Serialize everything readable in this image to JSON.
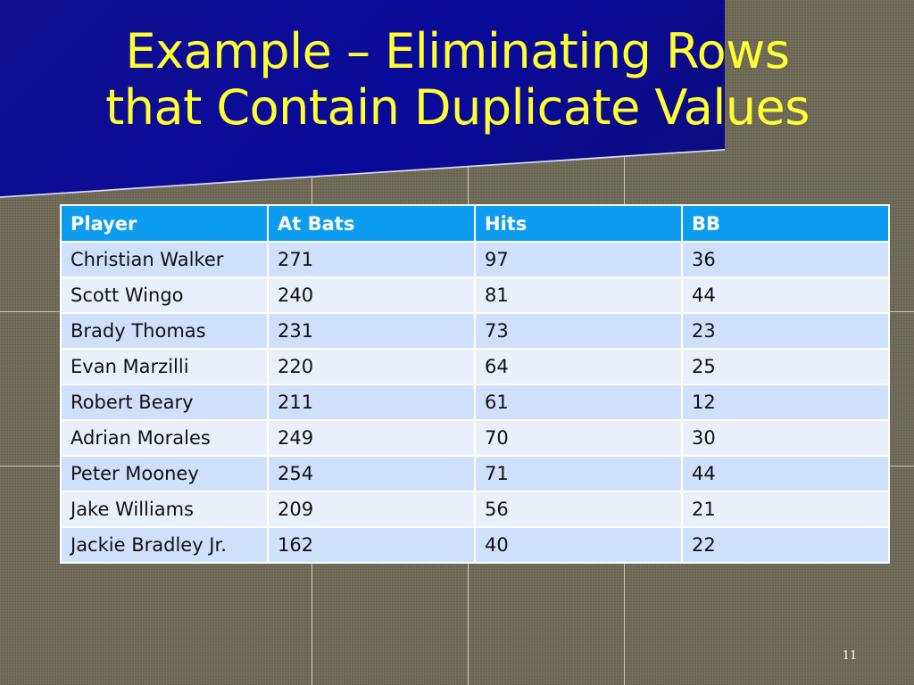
{
  "slide": {
    "title_line1": "Example – Eliminating Rows",
    "title_line2": "that Contain Duplicate Values",
    "page_number": "11"
  },
  "table": {
    "headers": [
      "Player",
      "At Bats",
      "Hits",
      "BB"
    ],
    "rows": [
      [
        "Christian Walker",
        "271",
        "97",
        "36"
      ],
      [
        "Scott Wingo",
        "240",
        "81",
        "44"
      ],
      [
        "Brady Thomas",
        "231",
        "73",
        "23"
      ],
      [
        "Evan Marzilli",
        "220",
        "64",
        "25"
      ],
      [
        "Robert Beary",
        "211",
        "61",
        "12"
      ],
      [
        "Adrian Morales",
        "249",
        "70",
        "30"
      ],
      [
        "Peter Mooney",
        "254",
        "71",
        "44"
      ],
      [
        "Jake Williams",
        "209",
        "56",
        "21"
      ],
      [
        "Jackie Bradley Jr.",
        "162",
        "40",
        "22"
      ]
    ]
  },
  "colors": {
    "title_text": "#ffff33",
    "banner": "#0a0a9a",
    "header_bg": "#0e9cf0",
    "row_odd": "#cfe0fb",
    "row_even": "#e9f0fc"
  }
}
